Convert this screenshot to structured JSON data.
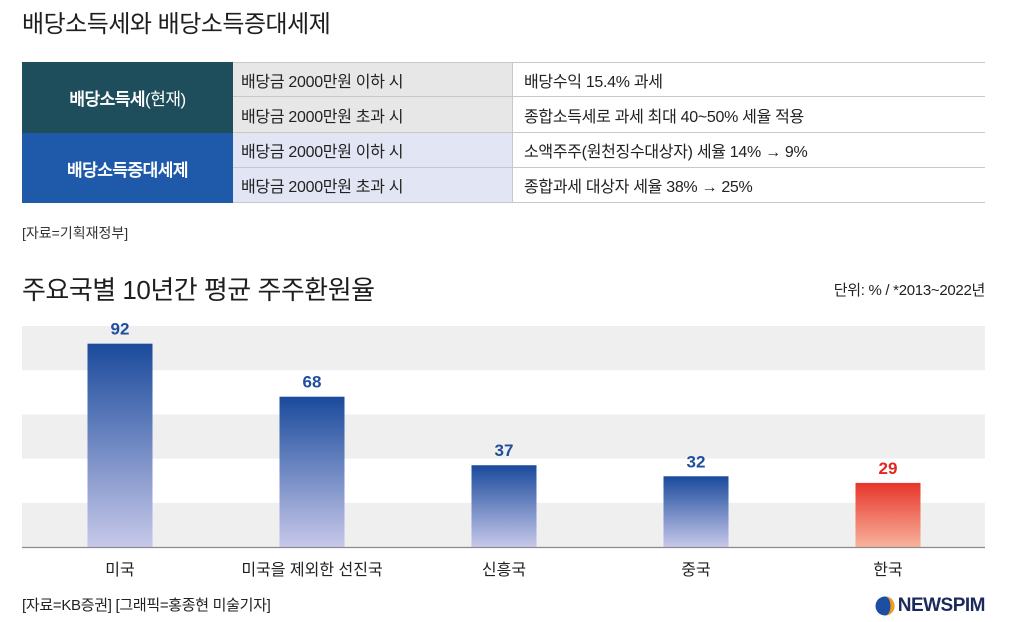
{
  "header": {
    "title": "배당소득세와 배당소득증대세제"
  },
  "table": {
    "groups": [
      {
        "label": "배당소득세",
        "label_note": "(현재)",
        "color": "#1e4d5c",
        "row_color": "#e7e7e7",
        "rows": [
          {
            "condition": "배당금 2000만원 이하 시",
            "detail": "배당수익 15.4% 과세"
          },
          {
            "condition": "배당금 2000만원 초과 시",
            "detail": "종합소득세로 과세 최대 40~50% 세율 적용"
          }
        ]
      },
      {
        "label": "배당소득증대세제",
        "color": "#1e5aa9",
        "row_color": "#e2e5f3",
        "rows": [
          {
            "condition": "배당금 2000만원 이하 시",
            "detail": "소액주주(원천징수대상자) 세율 14% → 9%"
          },
          {
            "condition": "배당금 2000만원 초과 시",
            "detail": "종합과세 대상자 세율 38% → 25%"
          }
        ]
      }
    ],
    "source": "[자료=기획재정부]"
  },
  "chart_data": {
    "type": "bar",
    "title": "주요국별 10년간 평균 주주환원율",
    "unit_note": "단위: % / *2013~2022년",
    "categories": [
      "미국",
      "미국을 제외한 선진국",
      "신흥국",
      "중국",
      "한국"
    ],
    "values": [
      92,
      68,
      37,
      32,
      29
    ],
    "ylim": [
      0,
      100
    ],
    "grid": true,
    "legend": false,
    "xlabel": "",
    "ylabel": "",
    "bar_colors": [
      {
        "top": "#1a4a9c",
        "bottom": "#c7c8ea",
        "label": "#1f4e9e"
      },
      {
        "top": "#1a4a9c",
        "bottom": "#c7c8ea",
        "label": "#1f4e9e"
      },
      {
        "top": "#1a4a9c",
        "bottom": "#c7c8ea",
        "label": "#1f4e9e"
      },
      {
        "top": "#1a4a9c",
        "bottom": "#c7c8ea",
        "label": "#1f4e9e"
      },
      {
        "top": "#e8352b",
        "bottom": "#f7b39c",
        "label": "#e3261f"
      }
    ]
  },
  "footer": {
    "credits": "[자료=KB증권] [그래픽=홍종현 미술기자]",
    "logo_text": "NEWSPIM",
    "logo_icon": "newspim-logo-icon",
    "logo_colors": {
      "primary": "#1c4fa2",
      "accent": "#f39c1b"
    }
  }
}
